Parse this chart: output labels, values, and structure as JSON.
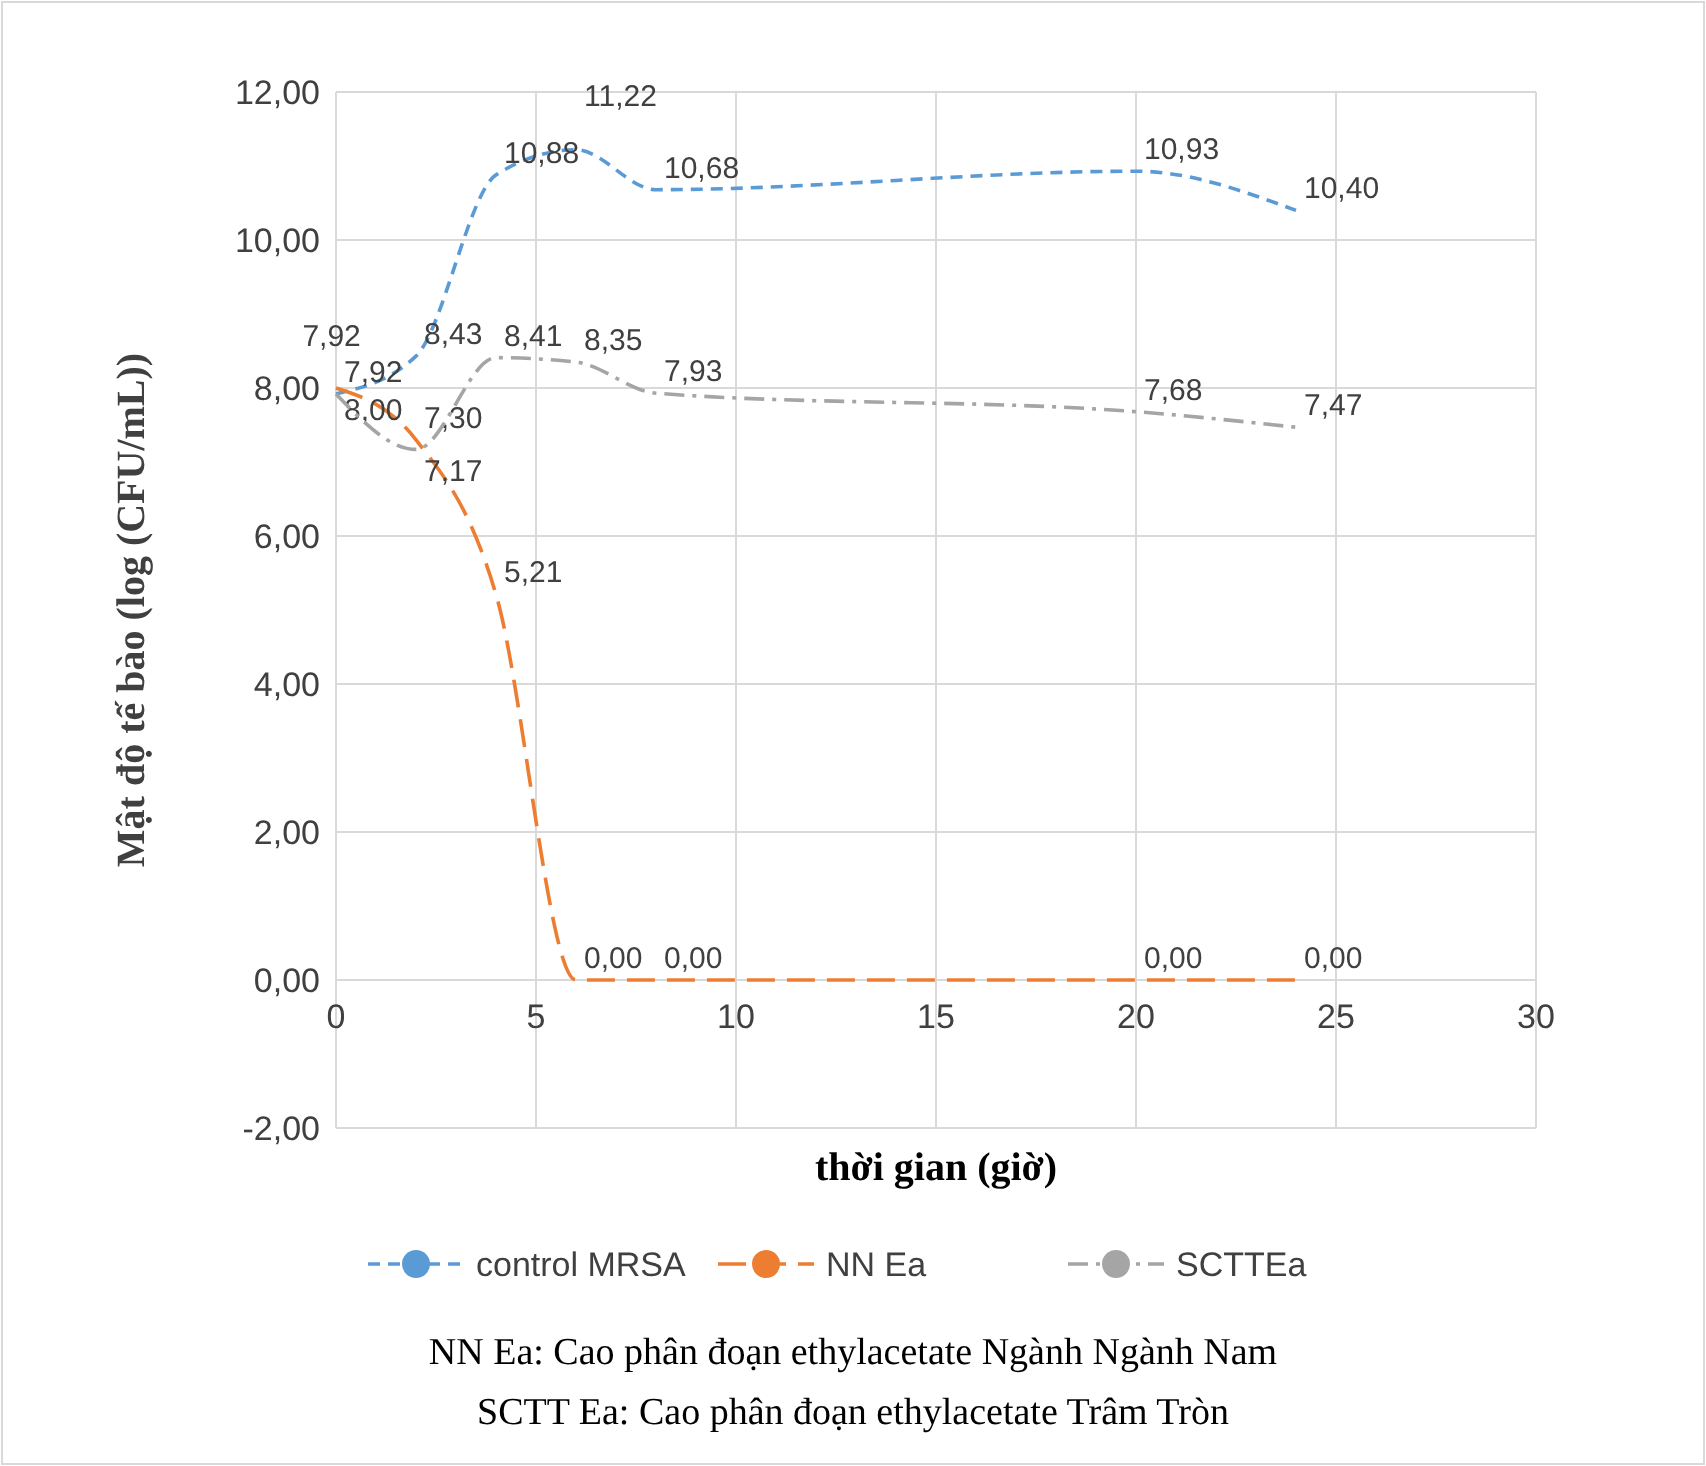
{
  "chart_data": {
    "type": "line",
    "xlabel": "thời gian (giờ)",
    "ylabel": "Mật độ tế bào (log (CFU/mL))",
    "x": [
      0,
      2,
      4,
      6,
      8,
      20,
      24
    ],
    "series": [
      {
        "name": "control MRSA",
        "color": "#5b9bd5",
        "line_style": "dashed",
        "values": [
          7.92,
          8.43,
          10.88,
          11.22,
          10.68,
          10.93,
          10.4
        ],
        "value_labels": [
          "7,92",
          "8,43",
          "10,88",
          "11,22",
          "10,68",
          "10,93",
          "10,40"
        ]
      },
      {
        "name": "NN Ea",
        "color": "#ed7d31",
        "line_style": "dashed",
        "values": [
          8.0,
          7.3,
          5.21,
          0,
          0,
          0,
          0
        ],
        "value_labels": [
          "8,00",
          "7,30",
          "5,21",
          "0,00",
          "0,00",
          "0,00",
          "0,00"
        ]
      },
      {
        "name": "SCTTEa",
        "color": "#a5a5a5",
        "line_style": "dotted",
        "values": [
          7.92,
          7.17,
          8.41,
          8.35,
          7.93,
          7.68,
          7.47
        ],
        "value_labels": [
          "7,92",
          "7,17",
          "8,41",
          "8,35",
          "7,93",
          "7,68",
          "7,47"
        ]
      }
    ],
    "xlim": [
      0,
      30
    ],
    "xticks": [
      0,
      5,
      10,
      15,
      20,
      25,
      30
    ],
    "ylim": [
      -2,
      12
    ],
    "yticks": [
      {
        "value": -2,
        "label": "-2,00"
      },
      {
        "value": 0,
        "label": "0,00"
      },
      {
        "value": 2,
        "label": "2,00"
      },
      {
        "value": 4,
        "label": "4,00"
      },
      {
        "value": 6,
        "label": "6,00"
      },
      {
        "value": 8,
        "label": "8,00"
      },
      {
        "value": 10,
        "label": "10,00"
      },
      {
        "value": 12,
        "label": "12,00"
      }
    ],
    "grid": true,
    "legend": "bottom",
    "annotations": [
      "NN Ea: Cao phân đoạn ethylacetate Ngành Ngành Nam",
      "SCTT Ea: Cao phân đoạn ethylacetate Trâm Tròn"
    ]
  }
}
